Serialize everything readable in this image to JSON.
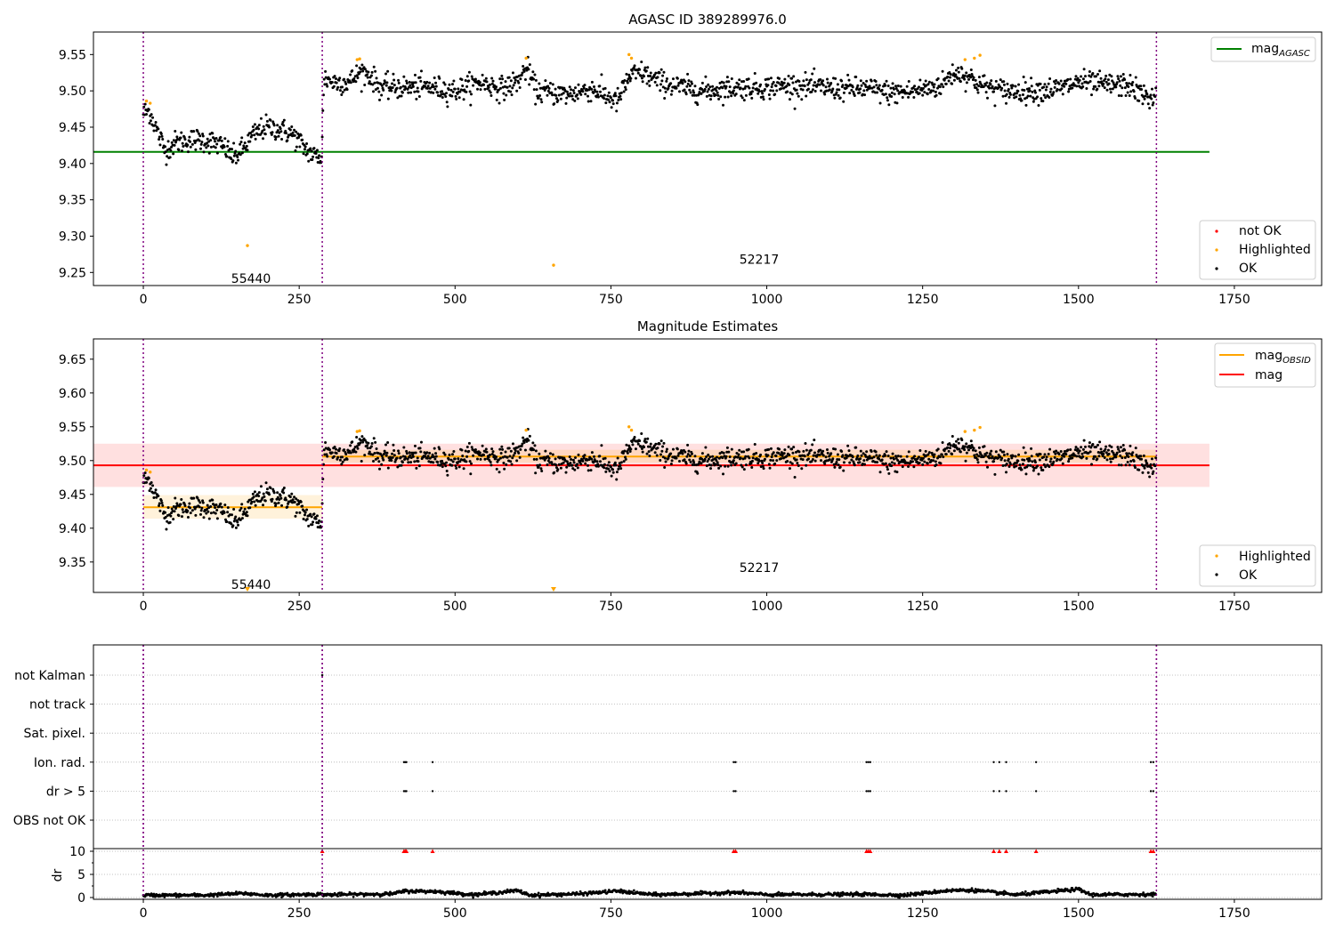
{
  "figure": {
    "colors": {
      "ok": "#000000",
      "highlighted": "#ffa500",
      "not_ok": "#ff0000",
      "agasc_line": "#008000",
      "mag_line": "#ff0000",
      "obsid_line": "#ffa500",
      "obs_boundary": "#800080"
    }
  },
  "chart_data": [
    {
      "type": "scatter",
      "title": "AGASC ID 389289976.0",
      "xlabel": "",
      "ylabel": "",
      "xlim": [
        -80,
        1890
      ],
      "ylim": [
        9.232,
        9.581
      ],
      "x_ticks": [
        0,
        250,
        500,
        750,
        1000,
        1250,
        1500,
        1750
      ],
      "x_tick_labels": [
        "0",
        "250",
        "500",
        "750",
        "1000",
        "1250",
        "1500",
        "1750"
      ],
      "y_ticks": [
        9.25,
        9.3,
        9.35,
        9.4,
        9.45,
        9.5,
        9.55
      ],
      "y_tick_labels": [
        "9.25",
        "9.30",
        "9.35",
        "9.40",
        "9.45",
        "9.50",
        "9.55"
      ],
      "grid": false,
      "obs_boundaries": [
        0,
        287,
        1625
      ],
      "obsid_labels": [
        {
          "text": "55440",
          "x": 141,
          "y": 9.242
        },
        {
          "text": "52217",
          "x": 956,
          "y": 9.268
        }
      ],
      "lines": [
        {
          "name": "mag_AGASC",
          "legend_main": "mag",
          "legend_sub": "AGASC",
          "y": 9.416,
          "x_range": [
            -80,
            1710
          ],
          "color": "#008000"
        }
      ],
      "legend_lines": {
        "position": "top-right"
      },
      "legend_points": {
        "position": "bottom-right",
        "entries": [
          {
            "label": "not OK",
            "color": "#ff0000"
          },
          {
            "label": "Highlighted",
            "color": "#ffa500"
          },
          {
            "label": "OK",
            "color": "#000000"
          }
        ]
      },
      "series_profile": [
        [
          0,
          9.47
        ],
        [
          10,
          9.472
        ],
        [
          22,
          9.445
        ],
        [
          35,
          9.418
        ],
        [
          50,
          9.428
        ],
        [
          70,
          9.432
        ],
        [
          90,
          9.433
        ],
        [
          110,
          9.43
        ],
        [
          130,
          9.422
        ],
        [
          145,
          9.408
        ],
        [
          160,
          9.42
        ],
        [
          175,
          9.438
        ],
        [
          195,
          9.45
        ],
        [
          215,
          9.448
        ],
        [
          240,
          9.44
        ],
        [
          260,
          9.42
        ],
        [
          275,
          9.41
        ],
        [
          286,
          9.41
        ],
        [
          290,
          9.518
        ],
        [
          305,
          9.512
        ],
        [
          330,
          9.512
        ],
        [
          350,
          9.527
        ],
        [
          365,
          9.52
        ],
        [
          380,
          9.505
        ],
        [
          420,
          9.505
        ],
        [
          460,
          9.505
        ],
        [
          500,
          9.5
        ],
        [
          540,
          9.512
        ],
        [
          575,
          9.503
        ],
        [
          600,
          9.512
        ],
        [
          615,
          9.532
        ],
        [
          630,
          9.5
        ],
        [
          680,
          9.495
        ],
        [
          720,
          9.503
        ],
        [
          760,
          9.485
        ],
        [
          780,
          9.52
        ],
        [
          800,
          9.525
        ],
        [
          820,
          9.515
        ],
        [
          860,
          9.505
        ],
        [
          900,
          9.5
        ],
        [
          950,
          9.505
        ],
        [
          1000,
          9.505
        ],
        [
          1040,
          9.508
        ],
        [
          1080,
          9.505
        ],
        [
          1120,
          9.503
        ],
        [
          1160,
          9.503
        ],
        [
          1200,
          9.497
        ],
        [
          1240,
          9.5
        ],
        [
          1280,
          9.508
        ],
        [
          1300,
          9.525
        ],
        [
          1320,
          9.522
        ],
        [
          1345,
          9.507
        ],
        [
          1380,
          9.5
        ],
        [
          1420,
          9.5
        ],
        [
          1470,
          9.503
        ],
        [
          1500,
          9.512
        ],
        [
          1540,
          9.508
        ],
        [
          1580,
          9.508
        ],
        [
          1605,
          9.493
        ],
        [
          1625,
          9.49
        ]
      ],
      "point_count": 1625,
      "scatter_sd": 0.008,
      "highlighted_points": [
        {
          "x": 5,
          "y": 9.486
        },
        {
          "x": 11,
          "y": 9.483
        },
        {
          "x": 167,
          "y": 9.287
        },
        {
          "x": 343,
          "y": 9.543
        },
        {
          "x": 347,
          "y": 9.544
        },
        {
          "x": 614,
          "y": 9.545
        },
        {
          "x": 658,
          "y": 9.26
        },
        {
          "x": 779,
          "y": 9.55
        },
        {
          "x": 783,
          "y": 9.545
        },
        {
          "x": 1318,
          "y": 9.543
        },
        {
          "x": 1333,
          "y": 9.545
        },
        {
          "x": 1342,
          "y": 9.549
        }
      ]
    },
    {
      "type": "scatter",
      "title": "Magnitude Estimates",
      "xlabel": "",
      "ylabel": "",
      "xlim": [
        -80,
        1890
      ],
      "ylim": [
        9.305,
        9.68
      ],
      "x_ticks": [
        0,
        250,
        500,
        750,
        1000,
        1250,
        1500,
        1750
      ],
      "x_tick_labels": [
        "0",
        "250",
        "500",
        "750",
        "1000",
        "1250",
        "1500",
        "1750"
      ],
      "y_ticks": [
        9.35,
        9.4,
        9.45,
        9.5,
        9.55,
        9.6,
        9.65
      ],
      "y_tick_labels": [
        "9.35",
        "9.40",
        "9.45",
        "9.50",
        "9.55",
        "9.60",
        "9.65"
      ],
      "grid": false,
      "obs_boundaries": [
        0,
        287,
        1625
      ],
      "obsid_labels": [
        {
          "text": "55440",
          "x": 141,
          "y": 9.317
        },
        {
          "text": "52217",
          "x": 956,
          "y": 9.342
        }
      ],
      "bands": [
        {
          "x_range": [
            -80,
            1710
          ],
          "y_range": [
            9.461,
            9.525
          ],
          "color": "#ff0000",
          "opacity": 0.12
        },
        {
          "x_range": [
            0,
            287
          ],
          "y_range": [
            9.414,
            9.449
          ],
          "color": "#ffa500",
          "opacity": 0.14
        },
        {
          "x_range": [
            287,
            1625
          ],
          "y_range": [
            9.497,
            9.516
          ],
          "color": "#ffa500",
          "opacity": 0.14
        }
      ],
      "lines": [
        {
          "name": "mag_OBSID",
          "legend_main": "mag",
          "legend_sub": "OBSID",
          "segments": [
            [
              0,
              287,
              9.431
            ],
            [
              287,
              1625,
              9.506
            ]
          ],
          "color": "#ffa500"
        },
        {
          "name": "mag",
          "legend_main": "mag",
          "legend_sub": "",
          "y": 9.493,
          "x_range": [
            -80,
            1710
          ],
          "color": "#ff0000"
        }
      ],
      "legend_lines": {
        "position": "top-right"
      },
      "legend_points": {
        "position": "bottom-right",
        "entries": [
          {
            "label": "Highlighted",
            "color": "#ffa500"
          },
          {
            "label": "OK",
            "color": "#000000"
          }
        ]
      },
      "clipped_markers": [
        {
          "x": 167
        },
        {
          "x": 658
        }
      ],
      "highlighted_points": [
        {
          "x": 5,
          "y": 9.486
        },
        {
          "x": 11,
          "y": 9.483
        },
        {
          "x": 343,
          "y": 9.543
        },
        {
          "x": 347,
          "y": 9.544
        },
        {
          "x": 614,
          "y": 9.545
        },
        {
          "x": 779,
          "y": 9.55
        },
        {
          "x": 783,
          "y": 9.545
        },
        {
          "x": 1318,
          "y": 9.543
        },
        {
          "x": 1333,
          "y": 9.545
        },
        {
          "x": 1342,
          "y": 9.549
        }
      ]
    },
    {
      "type": "scatter",
      "title": "",
      "xlabel": "",
      "ylabel": "",
      "xlim": [
        -80,
        1890
      ],
      "categories": [
        "not Kalman",
        "not track",
        "Sat. pixel.",
        "Ion. rad.",
        "dr > 5",
        "OBS not OK"
      ],
      "grid": true,
      "obs_boundaries": [
        0,
        287,
        1625
      ],
      "flags": {
        "not Kalman": [
          287
        ],
        "not track": [],
        "Sat. pixel.": [],
        "Ion. rad.": [
          418,
          420,
          422,
          464,
          947,
          950,
          1160,
          1163,
          1166,
          1364,
          1373,
          1384,
          1432,
          1616,
          1620
        ],
        "dr > 5": [
          418,
          420,
          422,
          464,
          947,
          950,
          1160,
          1163,
          1166,
          1364,
          1373,
          1384,
          1432,
          1616,
          1620
        ],
        "OBS not OK": []
      }
    },
    {
      "type": "scatter",
      "title": "",
      "xlabel": "",
      "ylabel": "dr",
      "xlim": [
        -80,
        1890
      ],
      "ylim": [
        -0.5,
        10.5
      ],
      "x_ticks": [
        0,
        250,
        500,
        750,
        1000,
        1250,
        1500,
        1750
      ],
      "x_tick_labels": [
        "0",
        "250",
        "500",
        "750",
        "1000",
        "1250",
        "1500",
        "1750"
      ],
      "y_ticks": [
        0,
        5,
        10
      ],
      "y_tick_labels": [
        "0",
        "5",
        "10"
      ],
      "grid": true,
      "obs_boundaries": [
        0,
        287,
        1625
      ],
      "dr_profile": [
        [
          0,
          0.5
        ],
        [
          100,
          0.5
        ],
        [
          160,
          0.9
        ],
        [
          200,
          0.5
        ],
        [
          280,
          0.7
        ],
        [
          300,
          0.6
        ],
        [
          400,
          0.8
        ],
        [
          420,
          1.4
        ],
        [
          470,
          1.3
        ],
        [
          530,
          0.6
        ],
        [
          600,
          1.5
        ],
        [
          620,
          0.5
        ],
        [
          700,
          0.8
        ],
        [
          760,
          1.4
        ],
        [
          820,
          0.6
        ],
        [
          950,
          1.1
        ],
        [
          1000,
          0.6
        ],
        [
          1150,
          0.7
        ],
        [
          1220,
          0.5
        ],
        [
          1290,
          1.5
        ],
        [
          1330,
          1.6
        ],
        [
          1400,
          0.6
        ],
        [
          1500,
          1.8
        ],
        [
          1520,
          0.6
        ],
        [
          1625,
          0.7
        ]
      ],
      "clipped_red_x": [
        287,
        418,
        420,
        422,
        464,
        947,
        950,
        1160,
        1163,
        1166,
        1364,
        1373,
        1384,
        1432,
        1616,
        1620
      ],
      "clipped_value": 10
    }
  ]
}
